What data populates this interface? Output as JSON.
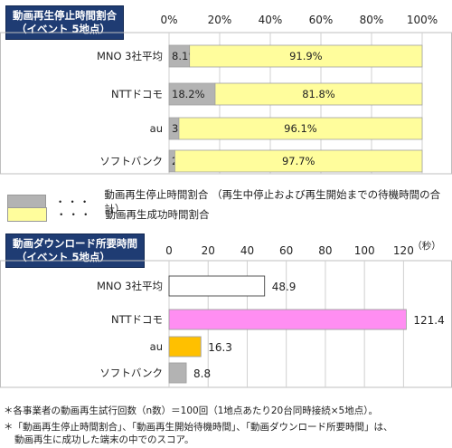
{
  "chart1": {
    "title_lines": [
      "動画再生停止時間割合",
      "（イベント 5地点）"
    ],
    "ticks": [
      "0%",
      "20%",
      "40%",
      "60%",
      "80%",
      "100%"
    ],
    "legend": [
      {
        "label": "動画再生停止時間割合 （再生中停止および再生開始までの待機時間の合計）",
        "color": "#b3b3b3"
      },
      {
        "label": "動画再生成功時間割合",
        "color": "#fffd9c"
      }
    ],
    "legend_dots": "・・・"
  },
  "chart2": {
    "title_lines": [
      "動画ダウンロード所要時間",
      "（イベント 5地点）"
    ],
    "ticks": [
      "0",
      "20",
      "40",
      "60",
      "80",
      "100",
      "120"
    ],
    "unit": "（秒）"
  },
  "footnotes": [
    "＊各事業者の動画再生試行回数（n数）＝100回（1地点あたり20台同時接続×5地点）。",
    "＊「動画再生停止時間割合」、「動画再生開始待機時間」、「動画ダウンロード所要時間」は、",
    "動画再生に成功した端末の中でのスコア。"
  ],
  "chart_data": [
    {
      "type": "bar",
      "orientation": "horizontal",
      "stacked": true,
      "categories": [
        "MNO 3社平均",
        "NTTドコモ",
        "au",
        "ソフトバンク"
      ],
      "series": [
        {
          "name": "動画再生停止時間割合",
          "values": [
            8.1,
            18.2,
            3.9,
            2.3
          ],
          "labels": [
            "8.1%",
            "18.2%",
            "3.9%",
            "2.3%"
          ],
          "color": "#b3b3b3"
        },
        {
          "name": "動画再生成功時間割合",
          "values": [
            91.9,
            81.8,
            96.1,
            97.7
          ],
          "labels": [
            "91.9%",
            "81.8%",
            "96.1%",
            "97.7%"
          ],
          "color": "#fffd9c"
        }
      ],
      "xlim": [
        0,
        100
      ],
      "grid": true
    },
    {
      "type": "bar",
      "orientation": "horizontal",
      "categories": [
        "MNO 3社平均",
        "NTTドコモ",
        "au",
        "ソフトバンク"
      ],
      "values": [
        48.9,
        121.4,
        16.3,
        8.8
      ],
      "labels": [
        "48.9",
        "121.4",
        "16.3",
        "8.8"
      ],
      "colors": [
        "#ffffff",
        "#ff8ef2",
        "#ffc000",
        "#b3b3b3"
      ],
      "xlim": [
        0,
        130
      ],
      "grid": true
    }
  ]
}
